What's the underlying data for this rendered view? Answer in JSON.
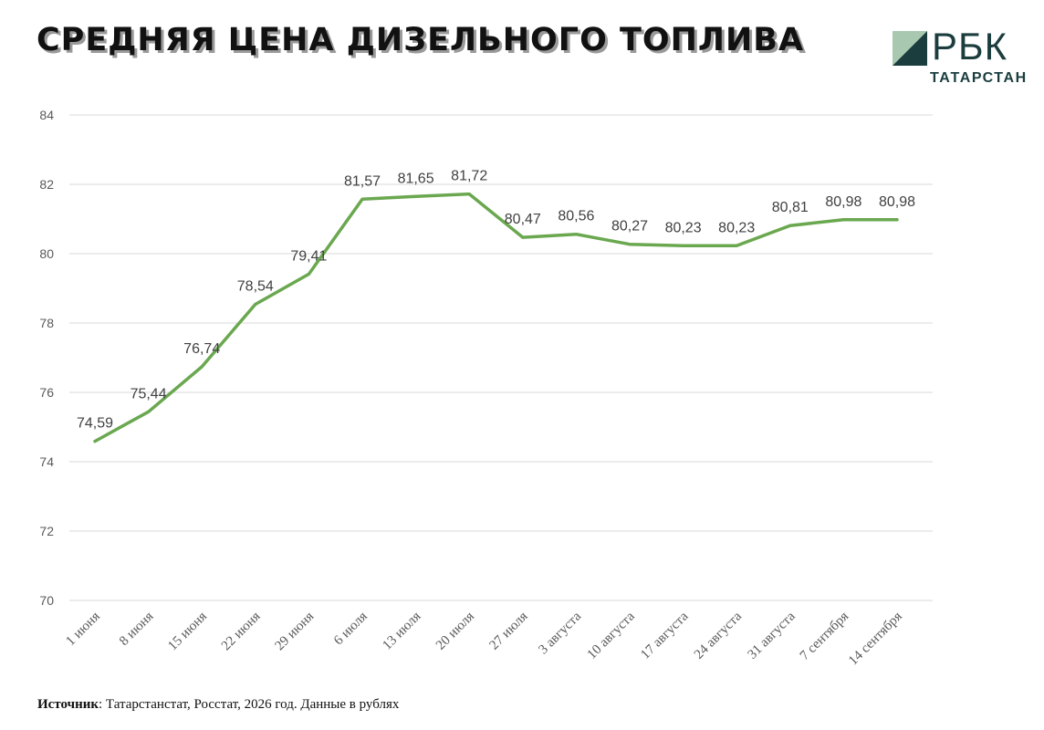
{
  "header": {
    "title": "СРЕДНЯЯ ЦЕНА ДИЗЕЛЬНОГО ТОПЛИВА",
    "logo_text": "РБК",
    "logo_sub": "ТАТАРСТАН"
  },
  "footer": {
    "source_label": "Источник",
    "source_text": ": Татарстанстат, Росстат, 2026 год. Данные в рублях"
  },
  "colors": {
    "line": "#6aa84f",
    "grid": "#d9d9d9",
    "axis_text": "#595959",
    "label_text": "#404040"
  },
  "chart_data": {
    "type": "line",
    "title": "СРЕДНЯЯ ЦЕНА ДИЗЕЛЬНОГО ТОПЛИВА",
    "xlabel": "",
    "ylabel": "",
    "ylim": [
      70,
      84
    ],
    "yticks": [
      "70",
      "72",
      "74",
      "76",
      "78",
      "80",
      "82",
      "84"
    ],
    "grid": true,
    "legend": "none",
    "categories": [
      "1 июня",
      "8 июня",
      "15 июня",
      "22 июня",
      "29 июня",
      "6 июля",
      "13 июля",
      "20 июля",
      "27 июля",
      "3 августа",
      "10 августа",
      "17 августа",
      "24 августа",
      "31 августа",
      "7 сентября",
      "14 сентября"
    ],
    "values": [
      74.59,
      75.44,
      76.74,
      78.54,
      79.41,
      81.57,
      81.65,
      81.72,
      80.47,
      80.56,
      80.27,
      80.23,
      80.23,
      80.81,
      80.98,
      80.98
    ],
    "data_labels": [
      "74,59",
      "75,44",
      "76,74",
      "78,54",
      "79,41",
      "81,57",
      "81,65",
      "81,72",
      "80,47",
      "80,56",
      "80,27",
      "80,23",
      "80,23",
      "80,81",
      "80,98",
      "80,98"
    ]
  }
}
